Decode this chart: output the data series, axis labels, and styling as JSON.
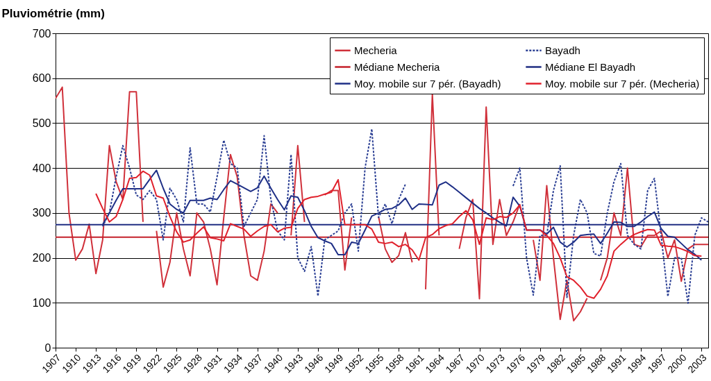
{
  "chart_data": {
    "type": "line",
    "ylabel": "Pluviométrie (mm)",
    "x": [
      1907,
      1908,
      1909,
      1910,
      1911,
      1912,
      1913,
      1914,
      1915,
      1916,
      1917,
      1918,
      1919,
      1920,
      1921,
      1922,
      1923,
      1924,
      1925,
      1926,
      1927,
      1928,
      1929,
      1930,
      1931,
      1932,
      1933,
      1934,
      1935,
      1936,
      1937,
      1938,
      1939,
      1940,
      1941,
      1942,
      1943,
      1944,
      1945,
      1946,
      1947,
      1948,
      1949,
      1950,
      1951,
      1952,
      1953,
      1954,
      1955,
      1956,
      1957,
      1958,
      1959,
      1960,
      1961,
      1962,
      1963,
      1964,
      1965,
      1966,
      1967,
      1968,
      1969,
      1970,
      1971,
      1972,
      1973,
      1974,
      1975,
      1976,
      1977,
      1978,
      1979,
      1980,
      1981,
      1982,
      1983,
      1984,
      1985,
      1986,
      1987,
      1988,
      1989,
      1990,
      1991,
      1992,
      1993,
      1994,
      1995,
      1996,
      1997,
      1998,
      1999,
      2000,
      2001,
      2002,
      2003,
      2004
    ],
    "series": [
      {
        "name": "Mecheria",
        "color": "#d0303a",
        "line_style": "solid",
        "values": [
          555,
          580,
          300,
          195,
          220,
          275,
          165,
          240,
          450,
          370,
          330,
          570,
          570,
          280,
          null,
          260,
          135,
          190,
          300,
          220,
          160,
          300,
          280,
          220,
          140,
          290,
          430,
          380,
          250,
          160,
          150,
          215,
          320,
          300,
          null,
          250,
          450,
          280,
          null,
          null,
          340,
          350,
          350,
          173,
          290,
          null,
          null,
          null,
          292,
          220,
          190,
          205,
          256,
          190,
          null,
          130,
          565,
          250,
          null,
          null,
          220,
          290,
          330,
          109,
          536,
          230,
          330,
          250,
          280,
          320,
          null,
          240,
          150,
          361,
          200,
          63,
          150,
          60,
          80,
          110,
          null,
          150,
          200,
          300,
          250,
          400,
          230,
          225,
          250,
          250,
          260,
          200,
          240,
          148,
          220,
          230,
          230,
          230
        ]
      },
      {
        "name": "Médiane Mecheria",
        "color": "#c4202a",
        "line_style": "solid",
        "values": [
          246,
          246,
          246,
          246,
          246,
          246,
          246,
          246,
          246,
          246,
          246,
          246,
          246,
          246,
          246,
          246,
          246,
          246,
          246,
          246,
          246,
          246,
          246,
          246,
          246,
          246,
          246,
          246,
          246,
          246,
          246,
          246,
          246,
          246,
          246,
          246,
          246,
          246,
          246,
          246,
          246,
          246,
          246,
          246,
          246,
          246,
          246,
          246,
          246,
          246,
          246,
          246,
          246,
          246,
          246,
          246,
          246,
          246,
          246,
          246,
          246,
          246,
          246,
          246,
          246,
          246,
          246,
          246,
          246,
          246,
          246,
          246,
          246,
          246,
          246,
          246,
          246,
          246,
          246,
          246,
          246,
          246,
          246,
          246,
          246,
          246,
          246,
          246,
          246,
          246,
          246,
          246,
          246,
          246,
          246,
          246,
          246,
          246
        ]
      },
      {
        "name": "Moy. mobile sur 7 pér. (Bayadh)",
        "color": "#1e2f86",
        "line_style": "solid",
        "values": [
          null,
          null,
          null,
          null,
          null,
          null,
          null,
          274,
          300,
          328,
          354,
          354,
          354,
          354,
          375,
          395,
          355,
          320,
          308,
          300,
          328,
          328,
          328,
          333,
          330,
          352,
          372,
          364,
          356,
          348,
          356,
          382,
          355,
          330,
          307,
          338,
          335,
          305,
          270,
          245,
          238,
          232,
          207,
          207,
          235,
          232,
          262,
          293,
          300,
          308,
          310,
          318,
          333,
          308,
          320,
          319,
          318,
          362,
          369,
          358,
          346,
          334,
          322,
          310,
          300,
          289,
          279,
          271,
          335,
          315,
          262,
          262,
          262,
          253,
          268,
          235,
          224,
          235,
          250,
          252,
          253,
          232,
          255,
          280,
          279,
          270,
          270,
          280,
          292,
          302,
          265,
          248,
          246,
          232,
          218,
          208,
          195,
          null
        ]
      },
      {
        "name": "Bayadh",
        "color": "#2b3f94",
        "line_style": "dashed",
        "values": [
          null,
          null,
          null,
          null,
          null,
          null,
          null,
          270,
          300,
          380,
          450,
          400,
          340,
          330,
          350,
          330,
          240,
          355,
          330,
          280,
          445,
          320,
          320,
          302,
          380,
          462,
          410,
          400,
          270,
          300,
          330,
          472,
          330,
          260,
          240,
          430,
          200,
          170,
          225,
          115,
          240,
          250,
          260,
          300,
          320,
          215,
          400,
          487,
          290,
          320,
          276,
          330,
          364,
          null,
          null,
          null,
          null,
          null,
          null,
          null,
          null,
          null,
          null,
          null,
          null,
          null,
          null,
          null,
          360,
          400,
          200,
          117,
          250,
          250,
          350,
          405,
          112,
          250,
          330,
          300,
          210,
          204,
          300,
          370,
          410,
          250,
          230,
          220,
          350,
          377,
          250,
          114,
          200,
          200,
          99,
          250,
          289,
          280
        ]
      },
      {
        "name": "Médiane El Bayadh",
        "color": "#1f2d82",
        "line_style": "solid",
        "values": [
          274,
          274,
          274,
          274,
          274,
          274,
          274,
          274,
          274,
          274,
          274,
          274,
          274,
          274,
          274,
          274,
          274,
          274,
          274,
          274,
          274,
          274,
          274,
          274,
          274,
          274,
          274,
          274,
          274,
          274,
          274,
          274,
          274,
          274,
          274,
          274,
          274,
          274,
          274,
          274,
          274,
          274,
          274,
          274,
          274,
          274,
          274,
          274,
          274,
          274,
          274,
          274,
          274,
          274,
          274,
          274,
          274,
          274,
          274,
          274,
          274,
          274,
          274,
          274,
          274,
          274,
          274,
          274,
          274,
          274,
          274,
          274,
          274,
          274,
          274,
          274,
          274,
          274,
          274,
          274,
          274,
          274,
          274,
          274,
          274,
          274,
          274,
          274,
          274,
          274,
          274,
          274,
          274,
          274,
          274,
          274,
          274,
          274
        ]
      },
      {
        "name": "Moy. mobile sur 7 pér. (Mecheria)",
        "color": "#e0202b",
        "line_style": "solid",
        "values": [
          null,
          null,
          null,
          null,
          null,
          null,
          343,
          310,
          280,
          292,
          330,
          377,
          379,
          393,
          384,
          338,
          333,
          292,
          258,
          235,
          240,
          255,
          269,
          245,
          242,
          238,
          276,
          270,
          264,
          248,
          260,
          270,
          274,
          258,
          266,
          268,
          310,
          330,
          335,
          337,
          342,
          346,
          374,
          274,
          274,
          274,
          274,
          264,
          235,
          232,
          235,
          225,
          230,
          218,
          195,
          245,
          252,
          265,
          272,
          276,
          292,
          305,
          285,
          230,
          289,
          285,
          292,
          290,
          300,
          318,
          262,
          262,
          262,
          250,
          232,
          200,
          158,
          150,
          135,
          115,
          110,
          130,
          160,
          215,
          230,
          243,
          252,
          258,
          263,
          262,
          228,
          226,
          225,
          220,
          214,
          205,
          204,
          null
        ]
      }
    ],
    "xlim": [
      1907,
      2004
    ],
    "xticks": [
      1907,
      1910,
      1913,
      1916,
      1919,
      1922,
      1925,
      1928,
      1931,
      1934,
      1937,
      1940,
      1943,
      1946,
      1949,
      1952,
      1955,
      1958,
      1961,
      1964,
      1967,
      1970,
      1973,
      1976,
      1979,
      1982,
      1985,
      1988,
      1991,
      1994,
      1997,
      2000,
      2003
    ],
    "ylim": [
      0,
      700
    ],
    "yticks": [
      0,
      100,
      200,
      300,
      400,
      500,
      600,
      700
    ],
    "grid": "y",
    "legend": "top right"
  }
}
